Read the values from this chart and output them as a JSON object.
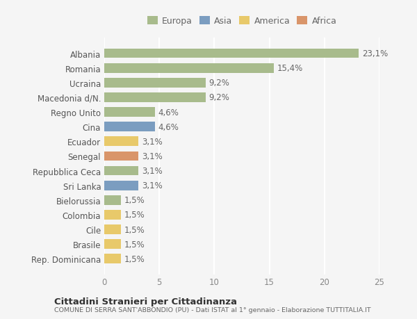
{
  "countries": [
    "Albania",
    "Romania",
    "Ucraina",
    "Macedonia d/N.",
    "Regno Unito",
    "Cina",
    "Ecuador",
    "Senegal",
    "Repubblica Ceca",
    "Sri Lanka",
    "Bielorussia",
    "Colombia",
    "Cile",
    "Brasile",
    "Rep. Dominicana"
  ],
  "values": [
    23.1,
    15.4,
    9.2,
    9.2,
    4.6,
    4.6,
    3.1,
    3.1,
    3.1,
    3.1,
    1.5,
    1.5,
    1.5,
    1.5,
    1.5
  ],
  "labels": [
    "23,1%",
    "15,4%",
    "9,2%",
    "9,2%",
    "4,6%",
    "4,6%",
    "3,1%",
    "3,1%",
    "3,1%",
    "3,1%",
    "1,5%",
    "1,5%",
    "1,5%",
    "1,5%",
    "1,5%"
  ],
  "colors": [
    "#a8bb8c",
    "#a8bb8c",
    "#a8bb8c",
    "#a8bb8c",
    "#a8bb8c",
    "#7b9dc0",
    "#e8c96a",
    "#d9956a",
    "#a8bb8c",
    "#7b9dc0",
    "#a8bb8c",
    "#e8c96a",
    "#e8c96a",
    "#e8c96a",
    "#e8c96a"
  ],
  "legend_labels": [
    "Europa",
    "Asia",
    "America",
    "Africa"
  ],
  "legend_colors": [
    "#a8bb8c",
    "#7b9dc0",
    "#e8c96a",
    "#d9956a"
  ],
  "xlim": [
    0,
    25
  ],
  "xticks": [
    0,
    5,
    10,
    15,
    20,
    25
  ],
  "title": "Cittadini Stranieri per Cittadinanza",
  "subtitle": "COMUNE DI SERRA SANT'ABBONDIO (PU) - Dati ISTAT al 1° gennaio - Elaborazione TUTTITALIA.IT",
  "background_color": "#f5f5f5",
  "bar_height": 0.65,
  "grid_color": "#ffffff",
  "label_fontsize": 8.5,
  "tick_fontsize": 8.5
}
